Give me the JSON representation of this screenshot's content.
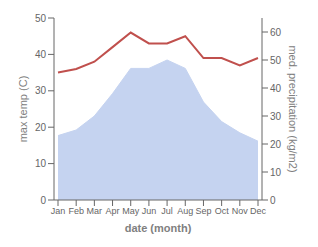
{
  "chart_data": {
    "type": "line",
    "xlabel": "date (month)",
    "ylabel": "max temp (C)",
    "y2label": "med. precipitation (kg/m2)",
    "categories": [
      "Jan",
      "Feb",
      "Mar",
      "Apr",
      "May",
      "Jun",
      "Jul",
      "Aug",
      "Sep",
      "Oct",
      "Nov",
      "Dec"
    ],
    "series": [
      {
        "type": "area",
        "axis": "y2",
        "color": "#c5d3f0",
        "values": [
          23,
          25,
          30,
          38,
          47,
          47,
          50,
          47,
          35,
          28,
          24,
          21
        ]
      },
      {
        "type": "line",
        "color": "#c0504d",
        "values": [
          35,
          36,
          38,
          42,
          46,
          43,
          43,
          45,
          39,
          39,
          37,
          39
        ]
      }
    ],
    "ylim": [
      0,
      50
    ],
    "yticks": [
      0,
      10,
      20,
      30,
      40,
      50
    ],
    "y2lim": [
      0,
      65
    ],
    "y2ticks": [
      0,
      10,
      20,
      30,
      40,
      50,
      60
    ]
  }
}
